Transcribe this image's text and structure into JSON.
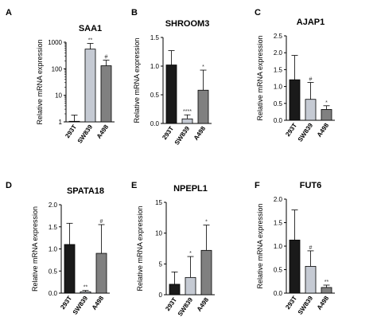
{
  "colors": {
    "bar_dark": "#1a1a1a",
    "bar_light": "#c5cad3",
    "bar_mid": "#808080",
    "axis": "#000000",
    "annotation": "#333333"
  },
  "chart_data": [
    {
      "panel_letter": "A",
      "type": "bar",
      "title": "SAA1",
      "ylabel": "Relative mRNA expression",
      "yscale": "log",
      "ylim": [
        1,
        1000
      ],
      "yticks": [
        1,
        10,
        100,
        1000
      ],
      "ytick_labels": [
        "1",
        "10",
        "100",
        "1000"
      ],
      "categories": [
        "293T",
        "SW839",
        "A498"
      ],
      "values": [
        1.05,
        550,
        130
      ],
      "error_upper": [
        1.8,
        900,
        210
      ],
      "annotations": [
        "",
        "**",
        "#"
      ],
      "bar_colors": [
        "bar_dark",
        "bar_light",
        "bar_mid"
      ]
    },
    {
      "panel_letter": "B",
      "type": "bar",
      "title": "SHROOM3",
      "ylabel": "Relative mRNA expression",
      "yscale": "linear",
      "ylim": [
        0,
        1.5
      ],
      "yticks": [
        0,
        0.5,
        1.0,
        1.5
      ],
      "ytick_labels": [
        "0.0",
        "0.5",
        "1.0",
        "1.5"
      ],
      "categories": [
        "293T",
        "SW839",
        "A498"
      ],
      "values": [
        1.02,
        0.08,
        0.58
      ],
      "error_upper": [
        1.27,
        0.15,
        0.93
      ],
      "annotations": [
        "",
        "****",
        "*"
      ],
      "bar_colors": [
        "bar_dark",
        "bar_light",
        "bar_mid"
      ]
    },
    {
      "panel_letter": "C",
      "type": "bar",
      "title": "AJAP1",
      "ylabel": "Relative mRNA expression",
      "yscale": "linear",
      "ylim": [
        0,
        2.5
      ],
      "yticks": [
        0,
        0.5,
        1.0,
        1.5,
        2.0,
        2.5
      ],
      "ytick_labels": [
        "0.0",
        "0.5",
        "1.0",
        "1.5",
        "2.0",
        "2.5"
      ],
      "categories": [
        "293T",
        "SW839",
        "A498"
      ],
      "values": [
        1.2,
        0.62,
        0.32
      ],
      "error_upper": [
        1.92,
        1.12,
        0.43
      ],
      "annotations": [
        "",
        "#",
        "*"
      ],
      "bar_colors": [
        "bar_dark",
        "bar_light",
        "bar_mid"
      ]
    },
    {
      "panel_letter": "D",
      "type": "bar",
      "title": "SPATA18",
      "ylabel": "Relative mRNA expression",
      "yscale": "linear",
      "ylim": [
        0,
        2.0
      ],
      "yticks": [
        0,
        0.5,
        1.0,
        1.5,
        2.0
      ],
      "ytick_labels": [
        "0.0",
        "0.5",
        "1.0",
        "1.5",
        "2.0"
      ],
      "categories": [
        "293T",
        "SW839",
        "A498"
      ],
      "values": [
        1.1,
        0.03,
        0.9
      ],
      "error_upper": [
        1.58,
        0.06,
        1.55
      ],
      "annotations": [
        "",
        "**",
        "#"
      ],
      "bar_colors": [
        "bar_dark",
        "bar_light",
        "bar_mid"
      ]
    },
    {
      "panel_letter": "E",
      "type": "bar",
      "title": "NPEPL1",
      "ylabel": "Relative mRNA expression",
      "yscale": "linear",
      "ylim": [
        0,
        15
      ],
      "yticks": [
        0,
        5,
        10,
        15
      ],
      "ytick_labels": [
        "0",
        "5",
        "10",
        "15"
      ],
      "categories": [
        "293T",
        "SW839",
        "A498"
      ],
      "values": [
        1.7,
        2.8,
        7.2
      ],
      "error_upper": [
        3.7,
        6.2,
        11.3
      ],
      "annotations": [
        "",
        "*",
        "*"
      ],
      "bar_colors": [
        "bar_dark",
        "bar_light",
        "bar_mid"
      ]
    },
    {
      "panel_letter": "F",
      "type": "bar",
      "title": "FUT6",
      "ylabel": "Relative mRNA expression",
      "yscale": "linear",
      "ylim": [
        0,
        2.0
      ],
      "yticks": [
        0,
        0.5,
        1.0,
        1.5,
        2.0
      ],
      "ytick_labels": [
        "0.0",
        "0.5",
        "1.0",
        "1.5",
        "2.0"
      ],
      "categories": [
        "293T",
        "SW839",
        "A498"
      ],
      "values": [
        1.13,
        0.57,
        0.12
      ],
      "error_upper": [
        1.77,
        0.9,
        0.17
      ],
      "annotations": [
        "",
        "#",
        "**"
      ],
      "bar_colors": [
        "bar_dark",
        "bar_light",
        "bar_mid"
      ]
    }
  ]
}
